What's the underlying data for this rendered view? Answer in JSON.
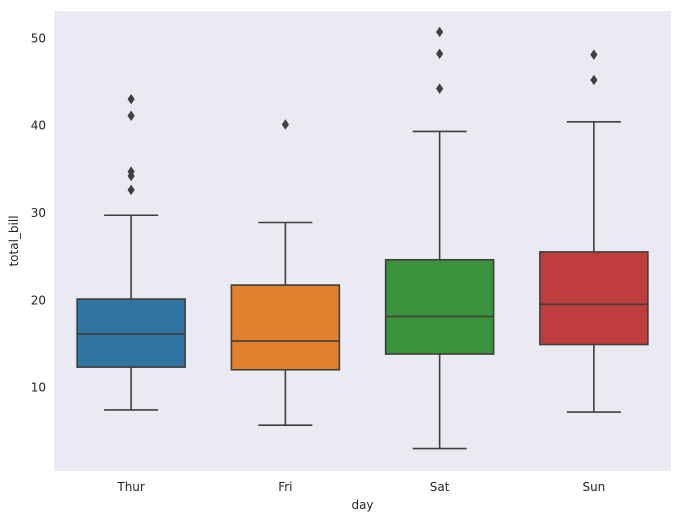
{
  "chart_data": {
    "type": "box",
    "title": "",
    "xlabel": "day",
    "ylabel": "total_bill",
    "ylim": [
      0.5,
      53.2
    ],
    "yticks": [
      10,
      20,
      30,
      40,
      50
    ],
    "ytick_labels": [
      "10",
      "20",
      "30",
      "40",
      "50"
    ],
    "grid": false,
    "background_color": "#eaeaf2",
    "categories": [
      "Thur",
      "Fri",
      "Sat",
      "Sun"
    ],
    "boxes": [
      {
        "category": "Thur",
        "color": "#3274a1",
        "whisker_low": 7.5,
        "q1": 12.4,
        "median": 16.2,
        "q3": 20.2,
        "whisker_high": 29.8,
        "outliers": [
          32.7,
          34.3,
          34.8,
          41.2,
          43.1
        ]
      },
      {
        "category": "Fri",
        "color": "#e1812c",
        "whisker_low": 5.75,
        "q1": 12.1,
        "median": 15.4,
        "q3": 21.8,
        "whisker_high": 28.97,
        "outliers": [
          40.2
        ]
      },
      {
        "category": "Sat",
        "color": "#3a923a",
        "whisker_low": 3.07,
        "q1": 13.9,
        "median": 18.2,
        "q3": 24.7,
        "whisker_high": 39.4,
        "outliers": [
          44.3,
          48.3,
          50.8
        ]
      },
      {
        "category": "Sun",
        "color": "#c03d3e",
        "whisker_low": 7.25,
        "q1": 14.99,
        "median": 19.6,
        "q3": 25.6,
        "whisker_high": 40.5,
        "outliers": [
          45.3,
          48.2
        ]
      }
    ]
  }
}
